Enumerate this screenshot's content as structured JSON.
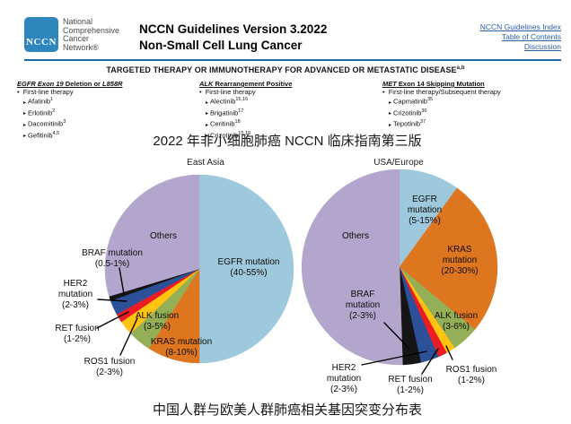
{
  "header": {
    "logo_text": "NCCN",
    "org_lines": [
      "National",
      "Comprehensive",
      "Cancer",
      "Network®"
    ],
    "title_line1": "NCCN Guidelines Version 3.2022",
    "title_line2": "Non-Small Cell Lung Cancer",
    "links": [
      {
        "label": "NCCN Guidelines Index"
      },
      {
        "label": "Table of Contents"
      },
      {
        "label": "Discussion"
      }
    ]
  },
  "banner": {
    "text": "TARGETED THERAPY OR IMMUNOTHERAPY FOR ADVANCED OR METASTATIC DISEASE",
    "superscript": "a,b"
  },
  "glyphs": {
    "list_bullet": "•",
    "drug_bullet": "▸"
  },
  "therapy_columns": [
    {
      "heading_parts": [
        {
          "t": "EGFR Exon 19",
          "i": true
        },
        {
          "t": " Deletion or ",
          "i": false
        },
        {
          "t": "L858R",
          "i": true
        }
      ],
      "subheading": "First-line therapy",
      "drugs": [
        {
          "name": "Afatinib",
          "sup": "1"
        },
        {
          "name": "Erlotinib",
          "sup": "2"
        },
        {
          "name": "Dacomitinib",
          "sup": "3"
        },
        {
          "name": "Gefitinib",
          "sup": "4,5"
        }
      ]
    },
    {
      "heading_parts": [
        {
          "t": "ALK",
          "i": true
        },
        {
          "t": " Rearrangement Positive",
          "i": false
        }
      ],
      "subheading": "First-line therapy",
      "drugs": [
        {
          "name": "Alectinib",
          "sup": "15,16"
        },
        {
          "name": "Brigatinib",
          "sup": "17"
        },
        {
          "name": "Ceritinib",
          "sup": "18"
        },
        {
          "name": "Crizotinib",
          "sup": "15,19"
        }
      ]
    },
    {
      "heading_parts": [
        {
          "t": "MET",
          "i": true
        },
        {
          "t": " Exon 14 Skipping Mutation",
          "i": false
        }
      ],
      "subheading": "First-line therapy/Subsequent therapy",
      "drugs": [
        {
          "name": "Capmatinib",
          "sup": "35"
        },
        {
          "name": "Crizotinib",
          "sup": "36"
        },
        {
          "name": "Tepotinib",
          "sup": "37"
        }
      ]
    }
  ],
  "captions": {
    "top": "2022 年非小细胞肺癌 NCCN 临床指南第三版",
    "bottom": "中国人群与欧美人群肺癌相关基因突变分布表"
  },
  "colors": {
    "brand_blue": "#2E86BC",
    "link_blue": "#2B5EA7",
    "rule_blue": "#2069A8",
    "ink": "#1a1a1a"
  },
  "chart_data": {
    "type": "pie",
    "pies": [
      {
        "title": "East Asia",
        "slices": [
          {
            "label": "EGFR mutation",
            "range": "(40-55%)",
            "value": 50,
            "color": "#9EC9DD"
          },
          {
            "label": "KRAS mutation",
            "range": "(8-10%)",
            "value": 9,
            "color": "#DE751F"
          },
          {
            "label": "ALK fusion",
            "range": "(3-5%)",
            "value": 4,
            "color": "#94AF55"
          },
          {
            "label": "ROS1 fusion",
            "range": "(2-3%)",
            "value": 2.5,
            "color": "#FFC310"
          },
          {
            "label": "RET fusion",
            "range": "(1-2%)",
            "value": 1.5,
            "color": "#EB1C24"
          },
          {
            "label": "HER2 mutation",
            "range": "(2-3%)",
            "value": 2.5,
            "color": "#2C5198"
          },
          {
            "label": "BRAF mutation",
            "range": "(0.5-1%)",
            "value": 0.8,
            "color": "#151515"
          },
          {
            "label": "Others",
            "range": "",
            "value": 29.7,
            "color": "#B3A6CD"
          }
        ]
      },
      {
        "title": "USA/Europe",
        "slices": [
          {
            "label": "EGFR mutation",
            "range": "(5-15%)",
            "value": 10,
            "color": "#9EC9DD"
          },
          {
            "label": "KRAS mutation",
            "range": "(20-30%)",
            "value": 26,
            "color": "#DE751F"
          },
          {
            "label": "ALK fusion",
            "range": "(3-6%)",
            "value": 4.5,
            "color": "#94AF55"
          },
          {
            "label": "ROS1 fusion",
            "range": "(1-2%)",
            "value": 1.5,
            "color": "#FFC310"
          },
          {
            "label": "RET fusion",
            "range": "(1-2%)",
            "value": 1.5,
            "color": "#EB1C24"
          },
          {
            "label": "HER2 mutation",
            "range": "(2-3%)",
            "value": 3,
            "color": "#2C5198"
          },
          {
            "label": "BRAF mutation",
            "range": "(2-3%)",
            "value": 3,
            "color": "#151515"
          },
          {
            "label": "Others",
            "range": "",
            "value": 50.5,
            "color": "#B3A6CD"
          }
        ]
      }
    ]
  }
}
